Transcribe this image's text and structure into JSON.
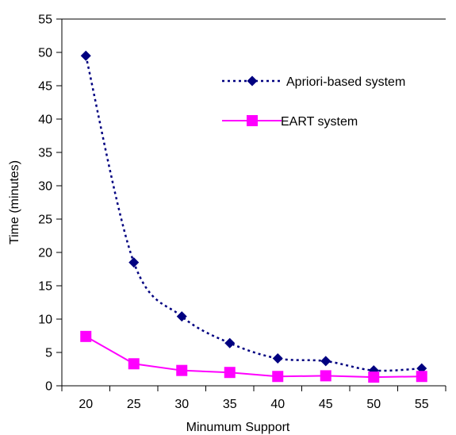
{
  "chart_data": {
    "type": "line",
    "xlabel": "Minumum Support",
    "ylabel": "Time (minutes)",
    "x": [
      20,
      25,
      30,
      35,
      40,
      45,
      50,
      55
    ],
    "xticks": [
      "20",
      "25",
      "30",
      "35",
      "40",
      "45",
      "50",
      "55"
    ],
    "yticks": [
      "0",
      "5",
      "10",
      "15",
      "20",
      "25",
      "30",
      "35",
      "40",
      "45",
      "50",
      "55"
    ],
    "ylim": [
      0,
      55
    ],
    "grid": false,
    "legend_position": "top-right",
    "series": [
      {
        "name": "Apriori-based system",
        "values": [
          49.5,
          18.5,
          10.4,
          6.4,
          4.1,
          3.7,
          2.3,
          2.6
        ],
        "color": "#000080",
        "line_style": "dotted",
        "marker": "diamond"
      },
      {
        "name": "EART system",
        "values": [
          7.4,
          3.3,
          2.3,
          2.0,
          1.4,
          1.5,
          1.3,
          1.4
        ],
        "color": "#ff00ff",
        "line_style": "solid",
        "marker": "square"
      }
    ]
  }
}
